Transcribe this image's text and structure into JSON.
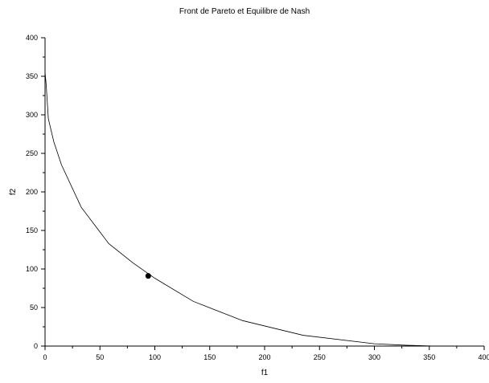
{
  "chart_data": {
    "type": "line",
    "title": "Front de Pareto et Equilibre de Nash",
    "xlabel": "f1",
    "ylabel": "f2",
    "xlim": [
      0,
      400
    ],
    "ylim": [
      0,
      400
    ],
    "xticks": [
      "0",
      "50",
      "100",
      "150",
      "200",
      "250",
      "300",
      "350",
      "400"
    ],
    "yticks": [
      "0",
      "50",
      "100",
      "150",
      "200",
      "250",
      "300",
      "350",
      "400"
    ],
    "x_minor_step": 25,
    "y_minor_step": 25,
    "grid": false,
    "series": [
      {
        "type": "line",
        "color": "#000000",
        "x": [
          0,
          1,
          3,
          8,
          15,
          33,
          58,
          80,
          100,
          135,
          180,
          235,
          300,
          330,
          355
        ],
        "y": [
          355,
          340,
          295,
          265,
          235,
          180,
          133,
          108,
          88,
          58,
          33,
          14,
          3,
          1,
          0
        ]
      },
      {
        "type": "scatter",
        "color": "#000000",
        "x": [
          94
        ],
        "y": [
          91
        ]
      }
    ]
  }
}
